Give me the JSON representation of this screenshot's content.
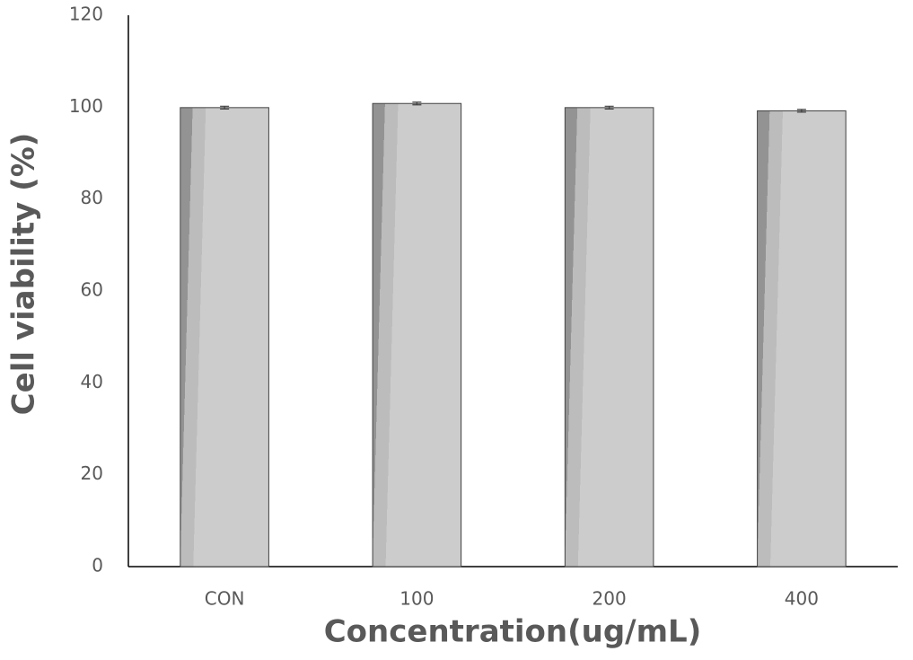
{
  "chart_data": {
    "type": "bar",
    "x_label": "Concentration(ug/mL)",
    "y_label": "Cell viability (%)",
    "categories": [
      "CON",
      "100",
      "200",
      "400"
    ],
    "values": [
      99.9,
      100.8,
      99.9,
      99.2
    ],
    "errors": [
      0.3,
      0.3,
      0.3,
      0.3
    ],
    "color": "#cccccc",
    "ylim": [
      0,
      120
    ],
    "yticks": [
      0,
      20,
      40,
      60,
      80,
      100,
      120
    ],
    "grid": false
  }
}
